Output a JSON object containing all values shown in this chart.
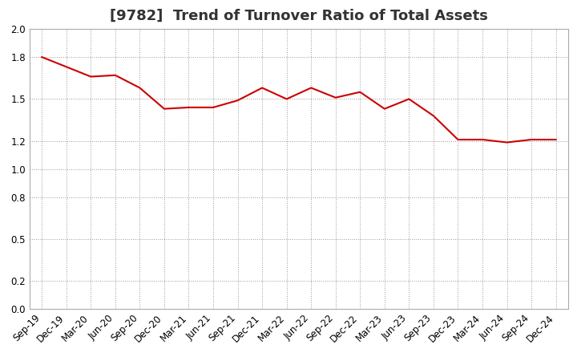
{
  "title": "[9782]  Trend of Turnover Ratio of Total Assets",
  "x_labels": [
    "Sep-19",
    "Dec-19",
    "Mar-20",
    "Jun-20",
    "Sep-20",
    "Dec-20",
    "Mar-21",
    "Jun-21",
    "Sep-21",
    "Dec-21",
    "Mar-22",
    "Jun-22",
    "Sep-22",
    "Dec-22",
    "Mar-23",
    "Jun-23",
    "Sep-23",
    "Dec-23",
    "Mar-24",
    "Jun-24",
    "Sep-24",
    "Dec-24"
  ],
  "y_values": [
    1.8,
    1.73,
    1.66,
    1.67,
    1.58,
    1.43,
    1.44,
    1.44,
    1.49,
    1.58,
    1.5,
    1.58,
    1.51,
    1.55,
    1.43,
    1.5,
    1.38,
    1.21,
    1.21,
    1.19,
    1.21,
    1.21
  ],
  "ylim": [
    0.0,
    2.0
  ],
  "yticks": [
    0.0,
    0.2,
    0.5,
    0.8,
    1.0,
    1.2,
    1.5,
    1.8,
    2.0
  ],
  "line_color": "#cc0000",
  "line_width": 1.5,
  "bg_color": "#ffffff",
  "plot_bg_color": "#ffffff",
  "grid_color": "#999999",
  "title_fontsize": 13,
  "tick_fontsize": 8.5,
  "title_color": "#333333"
}
